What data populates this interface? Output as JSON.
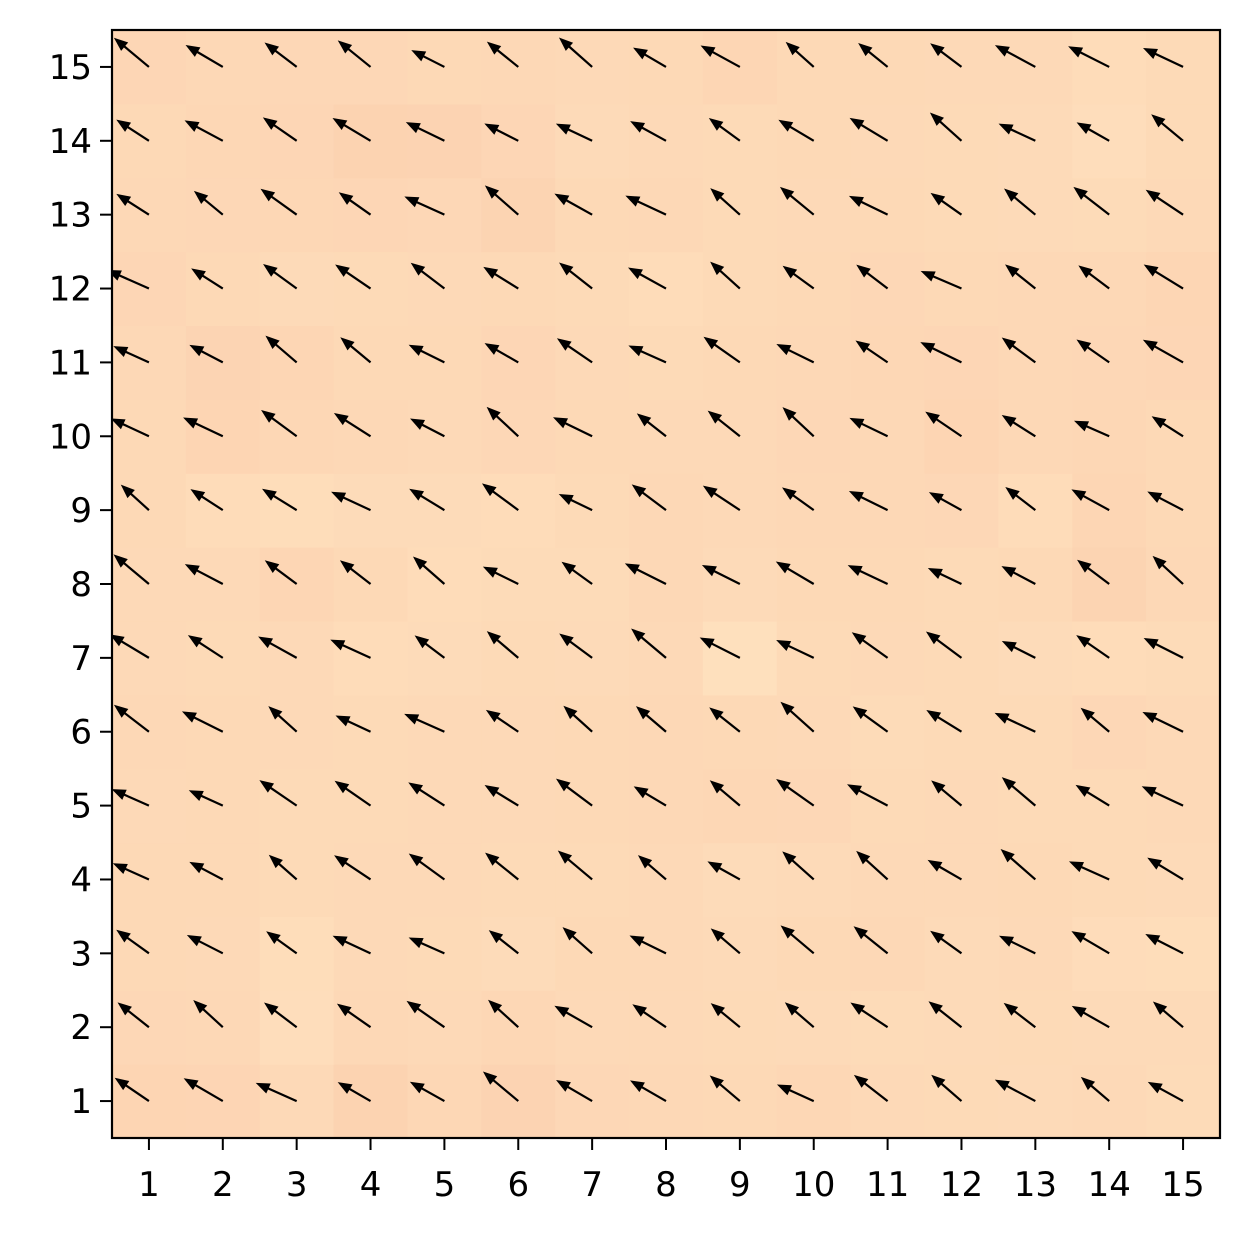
{
  "chart_data": {
    "type": "heatmap",
    "overlay": "quiver",
    "title": "",
    "xlabel": "",
    "ylabel": "",
    "xlim": [
      0.5,
      15.5
    ],
    "ylim": [
      0.5,
      15.5
    ],
    "x_ticks": [
      1,
      2,
      3,
      4,
      5,
      6,
      7,
      8,
      9,
      10,
      11,
      12,
      13,
      14,
      15
    ],
    "y_ticks": [
      1,
      2,
      3,
      4,
      5,
      6,
      7,
      8,
      9,
      10,
      11,
      12,
      13,
      14,
      15
    ],
    "x_tick_labels": [
      "1",
      "2",
      "3",
      "4",
      "5",
      "6",
      "7",
      "8",
      "9",
      "10",
      "11",
      "12",
      "13",
      "14",
      "15"
    ],
    "y_tick_labels": [
      "1",
      "2",
      "3",
      "4",
      "5",
      "6",
      "7",
      "8",
      "9",
      "10",
      "11",
      "12",
      "13",
      "14",
      "15"
    ],
    "grid": false,
    "colormap": {
      "low": "#FFE5C2",
      "high": "#FBCBAA"
    },
    "arrow_color": "#000000",
    "vector_field": {
      "u": -1.0,
      "v": 0.65,
      "description_of_direction": "all arrows point up-left with small random variation"
    },
    "heatmap_values": [
      [
        0.62,
        0.6,
        0.45,
        0.7,
        0.55,
        0.68,
        0.52,
        0.5,
        0.48,
        0.55,
        0.45,
        0.44,
        0.42,
        0.45,
        0.4
      ],
      [
        0.52,
        0.5,
        0.3,
        0.5,
        0.46,
        0.55,
        0.45,
        0.46,
        0.44,
        0.42,
        0.4,
        0.42,
        0.44,
        0.42,
        0.42
      ],
      [
        0.48,
        0.46,
        0.32,
        0.46,
        0.44,
        0.38,
        0.48,
        0.46,
        0.42,
        0.48,
        0.5,
        0.42,
        0.46,
        0.34,
        0.32
      ],
      [
        0.48,
        0.48,
        0.44,
        0.46,
        0.46,
        0.44,
        0.44,
        0.46,
        0.38,
        0.42,
        0.46,
        0.45,
        0.48,
        0.44,
        0.42
      ],
      [
        0.46,
        0.48,
        0.44,
        0.44,
        0.46,
        0.46,
        0.48,
        0.5,
        0.54,
        0.52,
        0.44,
        0.46,
        0.44,
        0.44,
        0.46
      ],
      [
        0.5,
        0.48,
        0.46,
        0.44,
        0.45,
        0.46,
        0.48,
        0.5,
        0.48,
        0.45,
        0.4,
        0.44,
        0.44,
        0.52,
        0.46
      ],
      [
        0.46,
        0.44,
        0.46,
        0.36,
        0.38,
        0.44,
        0.42,
        0.46,
        0.2,
        0.44,
        0.45,
        0.44,
        0.38,
        0.36,
        0.4
      ],
      [
        0.46,
        0.46,
        0.58,
        0.48,
        0.36,
        0.4,
        0.4,
        0.5,
        0.42,
        0.48,
        0.48,
        0.44,
        0.48,
        0.65,
        0.5
      ],
      [
        0.48,
        0.36,
        0.32,
        0.38,
        0.38,
        0.36,
        0.44,
        0.5,
        0.46,
        0.5,
        0.5,
        0.52,
        0.36,
        0.58,
        0.48
      ],
      [
        0.48,
        0.62,
        0.54,
        0.5,
        0.46,
        0.52,
        0.48,
        0.46,
        0.46,
        0.52,
        0.5,
        0.62,
        0.5,
        0.55,
        0.48
      ],
      [
        0.5,
        0.64,
        0.58,
        0.48,
        0.48,
        0.56,
        0.46,
        0.44,
        0.48,
        0.5,
        0.55,
        0.56,
        0.5,
        0.52,
        0.56
      ],
      [
        0.56,
        0.48,
        0.42,
        0.44,
        0.46,
        0.48,
        0.44,
        0.36,
        0.44,
        0.48,
        0.52,
        0.48,
        0.5,
        0.5,
        0.58
      ],
      [
        0.5,
        0.52,
        0.54,
        0.56,
        0.52,
        0.66,
        0.48,
        0.5,
        0.44,
        0.46,
        0.48,
        0.44,
        0.42,
        0.4,
        0.46
      ],
      [
        0.48,
        0.54,
        0.56,
        0.7,
        0.68,
        0.56,
        0.42,
        0.46,
        0.44,
        0.48,
        0.46,
        0.44,
        0.42,
        0.3,
        0.44
      ],
      [
        0.56,
        0.5,
        0.52,
        0.52,
        0.48,
        0.5,
        0.46,
        0.48,
        0.58,
        0.48,
        0.48,
        0.46,
        0.46,
        0.36,
        0.44
      ]
    ]
  }
}
